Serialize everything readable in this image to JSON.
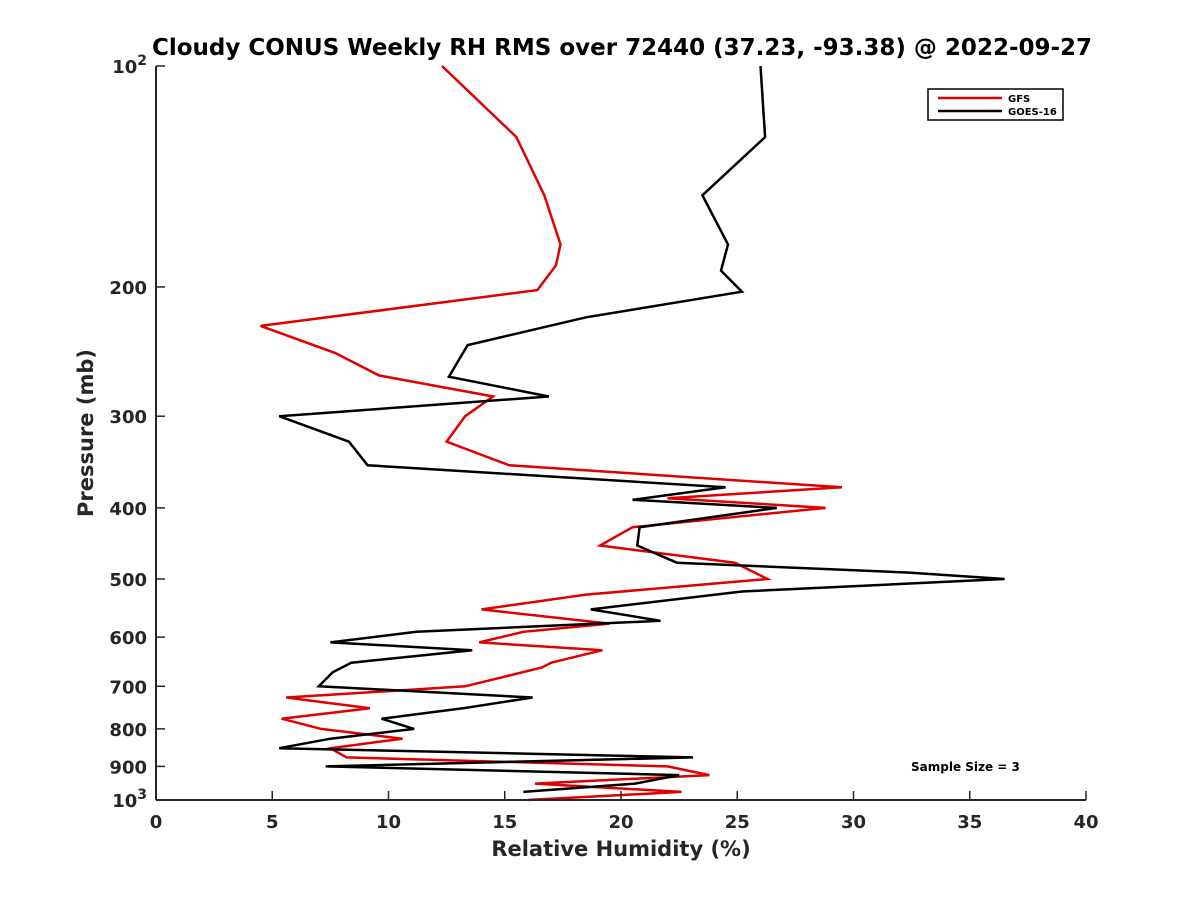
{
  "chart_data": {
    "type": "line",
    "title": "Cloudy CONUS Weekly RH RMS over 72440 (37.23, -93.38) @ 2022-09-27",
    "xlabel": "Relative Humidity (%)",
    "ylabel": "Pressure (mb)",
    "xlim": [
      0,
      40
    ],
    "ylim": [
      100,
      1000
    ],
    "y_scale": "log",
    "y_reversed": true,
    "x_ticks": [
      "0",
      "5",
      "10",
      "15",
      "20",
      "25",
      "30",
      "35",
      "40"
    ],
    "y_ticks": [
      {
        "value": 100,
        "label": "10",
        "sup": "2"
      },
      {
        "value": 200,
        "label": "200"
      },
      {
        "value": 300,
        "label": "300"
      },
      {
        "value": 400,
        "label": "400"
      },
      {
        "value": 500,
        "label": "500"
      },
      {
        "value": 600,
        "label": "600"
      },
      {
        "value": 700,
        "label": "700"
      },
      {
        "value": 800,
        "label": "800"
      },
      {
        "value": 900,
        "label": "900"
      },
      {
        "value": 1000,
        "label": "10",
        "sup": "3"
      }
    ],
    "grid": false,
    "legend_position": "top-right",
    "annotation": "Sample Size = 3",
    "series": [
      {
        "name": "GFS",
        "color": "#e00000",
        "points": [
          [
            12.3,
            100
          ],
          [
            15.5,
            125
          ],
          [
            16.7,
            150
          ],
          [
            17.4,
            175
          ],
          [
            17.2,
            187
          ],
          [
            16.4,
            202
          ],
          [
            4.5,
            226
          ],
          [
            7.7,
            246
          ],
          [
            9.6,
            264
          ],
          [
            14.5,
            282
          ],
          [
            13.3,
            300
          ],
          [
            12.5,
            325
          ],
          [
            15.2,
            350
          ],
          [
            29.5,
            375
          ],
          [
            22.0,
            388
          ],
          [
            28.8,
            400
          ],
          [
            20.5,
            425
          ],
          [
            19.1,
            450
          ],
          [
            24.9,
            475
          ],
          [
            26.3,
            500
          ],
          [
            18.5,
            525
          ],
          [
            14.0,
            550
          ],
          [
            19.5,
            575
          ],
          [
            15.8,
            590
          ],
          [
            13.9,
            610
          ],
          [
            19.2,
            625
          ],
          [
            17.0,
            650
          ],
          [
            16.6,
            660
          ],
          [
            13.3,
            700
          ],
          [
            5.6,
            725
          ],
          [
            9.2,
            750
          ],
          [
            5.4,
            775
          ],
          [
            7.1,
            800
          ],
          [
            10.6,
            825
          ],
          [
            7.5,
            850
          ],
          [
            8.2,
            875
          ],
          [
            22.0,
            900
          ],
          [
            23.8,
            925
          ],
          [
            16.3,
            950
          ],
          [
            22.6,
            975
          ],
          [
            16.0,
            1000
          ]
        ]
      },
      {
        "name": "GOES-16",
        "color": "#000000",
        "points": [
          [
            26.0,
            100
          ],
          [
            26.2,
            125
          ],
          [
            23.5,
            150
          ],
          [
            24.6,
            175
          ],
          [
            24.3,
            190
          ],
          [
            25.2,
            203
          ],
          [
            18.5,
            220
          ],
          [
            13.4,
            240
          ],
          [
            12.6,
            265
          ],
          [
            16.9,
            282
          ],
          [
            5.3,
            300
          ],
          [
            8.3,
            325
          ],
          [
            9.1,
            350
          ],
          [
            24.5,
            375
          ],
          [
            20.5,
            390
          ],
          [
            26.7,
            400
          ],
          [
            20.8,
            425
          ],
          [
            20.7,
            450
          ],
          [
            22.4,
            475
          ],
          [
            32.4,
            490
          ],
          [
            36.5,
            500
          ],
          [
            25.2,
            520
          ],
          [
            18.7,
            550
          ],
          [
            21.7,
            570
          ],
          [
            11.2,
            590
          ],
          [
            7.5,
            610
          ],
          [
            13.6,
            625
          ],
          [
            8.4,
            650
          ],
          [
            7.6,
            670
          ],
          [
            7.0,
            700
          ],
          [
            16.2,
            725
          ],
          [
            13.2,
            750
          ],
          [
            9.7,
            775
          ],
          [
            11.1,
            800
          ],
          [
            7.5,
            825
          ],
          [
            5.3,
            850
          ],
          [
            23.1,
            875
          ],
          [
            7.3,
            900
          ],
          [
            22.5,
            925
          ],
          [
            20.6,
            950
          ],
          [
            15.8,
            975
          ]
        ]
      }
    ]
  }
}
